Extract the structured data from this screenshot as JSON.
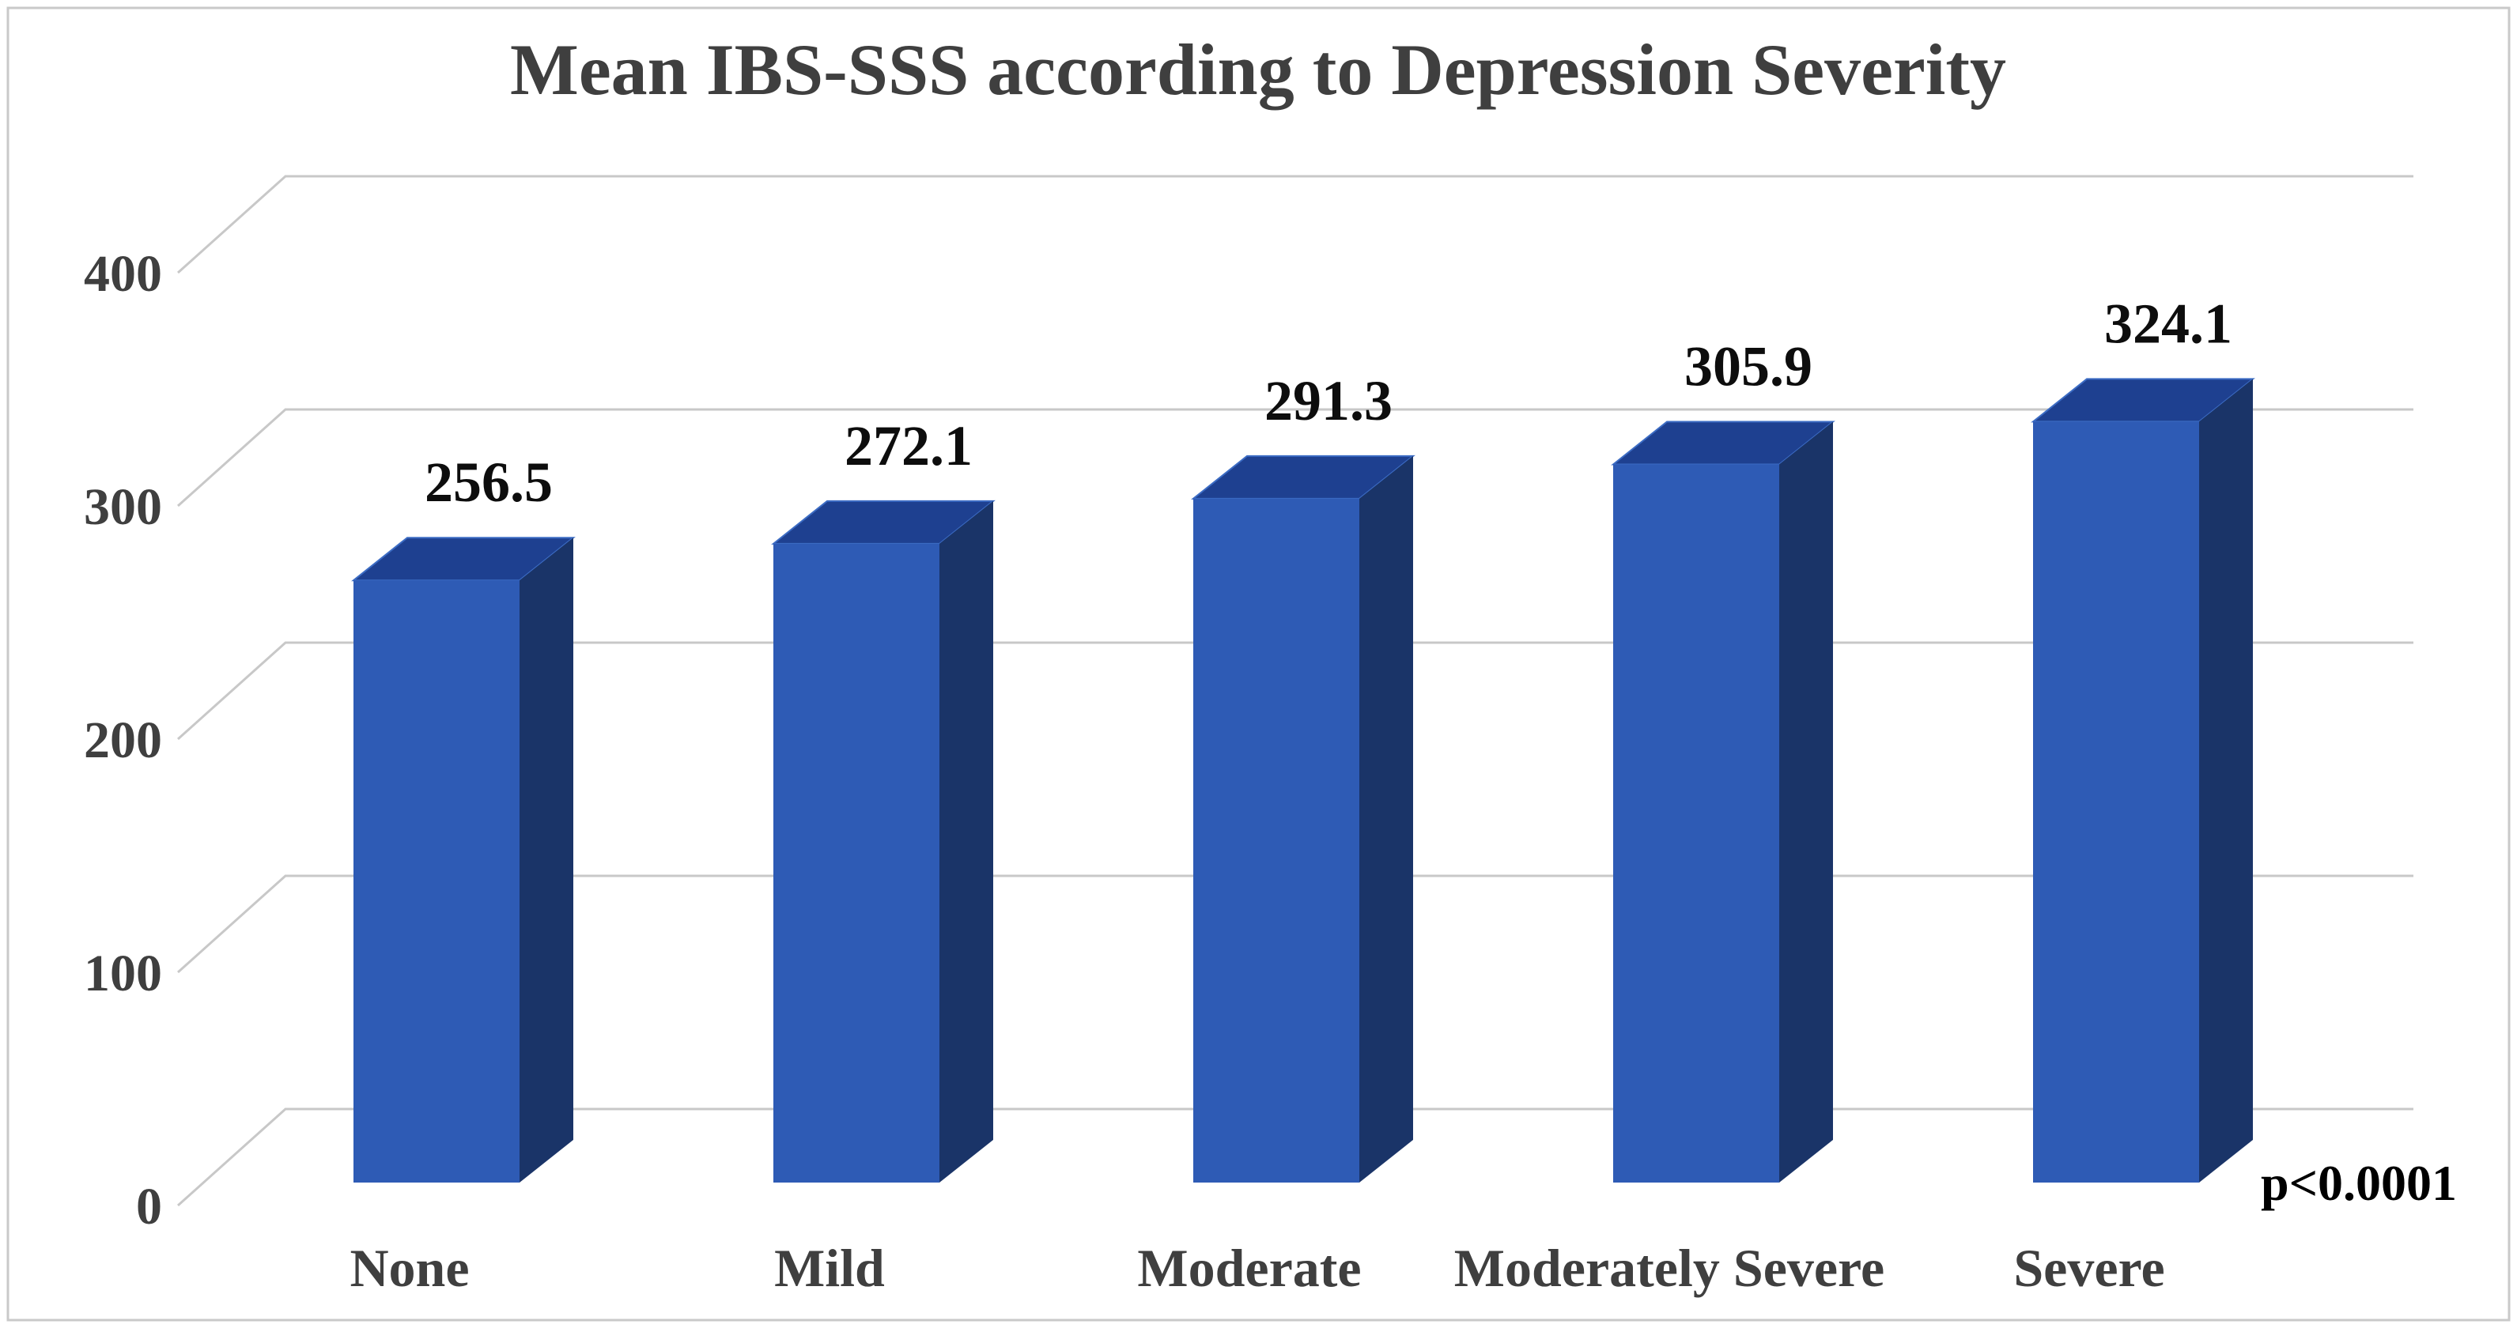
{
  "page": {
    "background": "#ffffff",
    "border_color": "#c9c9c9"
  },
  "chart_data": {
    "type": "bar",
    "variant": "3d-column",
    "title": "Mean IBS-SSS according to Depression Severity",
    "categories": [
      "None",
      "Mild",
      "Moderate",
      "Moderately Severe",
      "Severe"
    ],
    "values": [
      256.5,
      272.1,
      291.3,
      305.9,
      324.1
    ],
    "data_labels": [
      "256.5",
      "272.1",
      "291.3",
      "305.9",
      "324.1"
    ],
    "annotation": "p<0.0001",
    "xlabel": "",
    "ylabel": "",
    "y_axis": {
      "ticks": [
        0,
        100,
        200,
        300,
        400
      ],
      "tick_labels": [
        "0",
        "100",
        "200",
        "300",
        "400"
      ],
      "range": [
        0,
        400
      ]
    },
    "grid": true,
    "legend": false,
    "series_name": "Mean IBS-SSS",
    "colors": {
      "bar_front": "#2e5bb5",
      "bar_side": "#1a3468",
      "bar_top": "#1e4090",
      "bar_edge": "#3c6cc4",
      "gridline": "#c8c8c8",
      "axis_text": "#3f3f3f",
      "title_text": "#3f3f3f",
      "data_label_text": "#0d0d0d",
      "annotation_text": "#000000"
    }
  }
}
